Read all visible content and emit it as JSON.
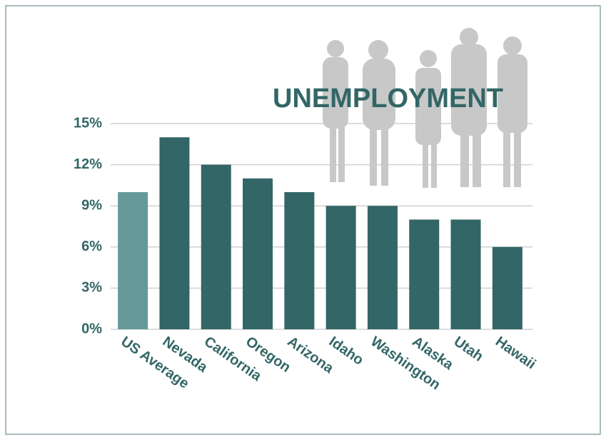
{
  "chart_data": {
    "type": "bar",
    "title": "UNEMPLOYMENT",
    "categories": [
      "US Average",
      "Nevada",
      "California",
      "Oregon",
      "Arizona",
      "Idaho",
      "Washington",
      "Alaska",
      "Utah",
      "Hawaii"
    ],
    "values": [
      10,
      14,
      12,
      11,
      10,
      9,
      9,
      8,
      8,
      6
    ],
    "colors": [
      "#669999",
      "#336666",
      "#336666",
      "#336666",
      "#336666",
      "#336666",
      "#336666",
      "#336666",
      "#336666",
      "#336666"
    ],
    "ylim": [
      0,
      15
    ],
    "yticks": [
      {
        "value": 0,
        "label": "0%"
      },
      {
        "value": 3,
        "label": "3%"
      },
      {
        "value": 6,
        "label": "6%"
      },
      {
        "value": 9,
        "label": "9%"
      },
      {
        "value": 12,
        "label": "12%"
      },
      {
        "value": 15,
        "label": "15%"
      }
    ],
    "grid": true
  }
}
